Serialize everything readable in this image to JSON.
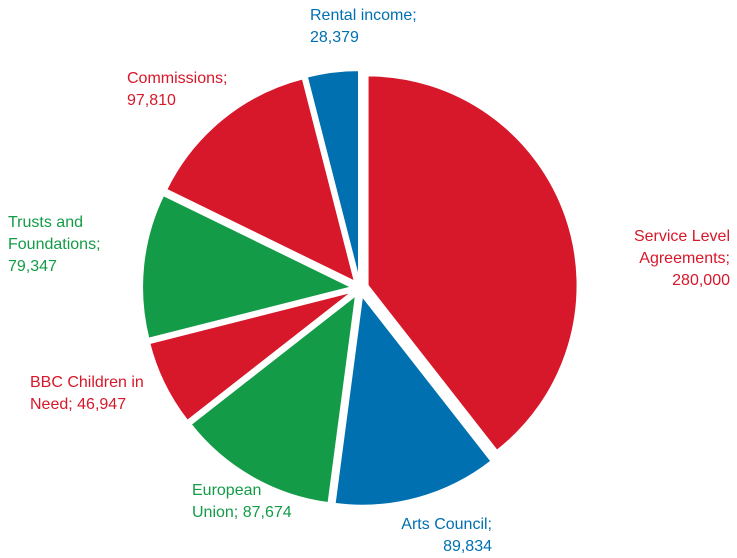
{
  "chart_data": {
    "type": "pie",
    "categories": [
      "Service Level Agreements;",
      "Arts Council;",
      "European Union;",
      "BBC Children in Need;",
      "Trusts and Foundations;",
      "Commissions;",
      "Rental income;"
    ],
    "values": [
      280000,
      89834,
      87674,
      46947,
      79347,
      97810,
      28379
    ],
    "value_labels": [
      "280,000",
      "89,834",
      "87,674",
      "46,947",
      "79,347",
      "97,810",
      "28,379"
    ],
    "colors": [
      "#d7172a",
      "#0070b0",
      "#149b48",
      "#d7172a",
      "#149b48",
      "#d7172a",
      "#0070b0"
    ]
  }
}
